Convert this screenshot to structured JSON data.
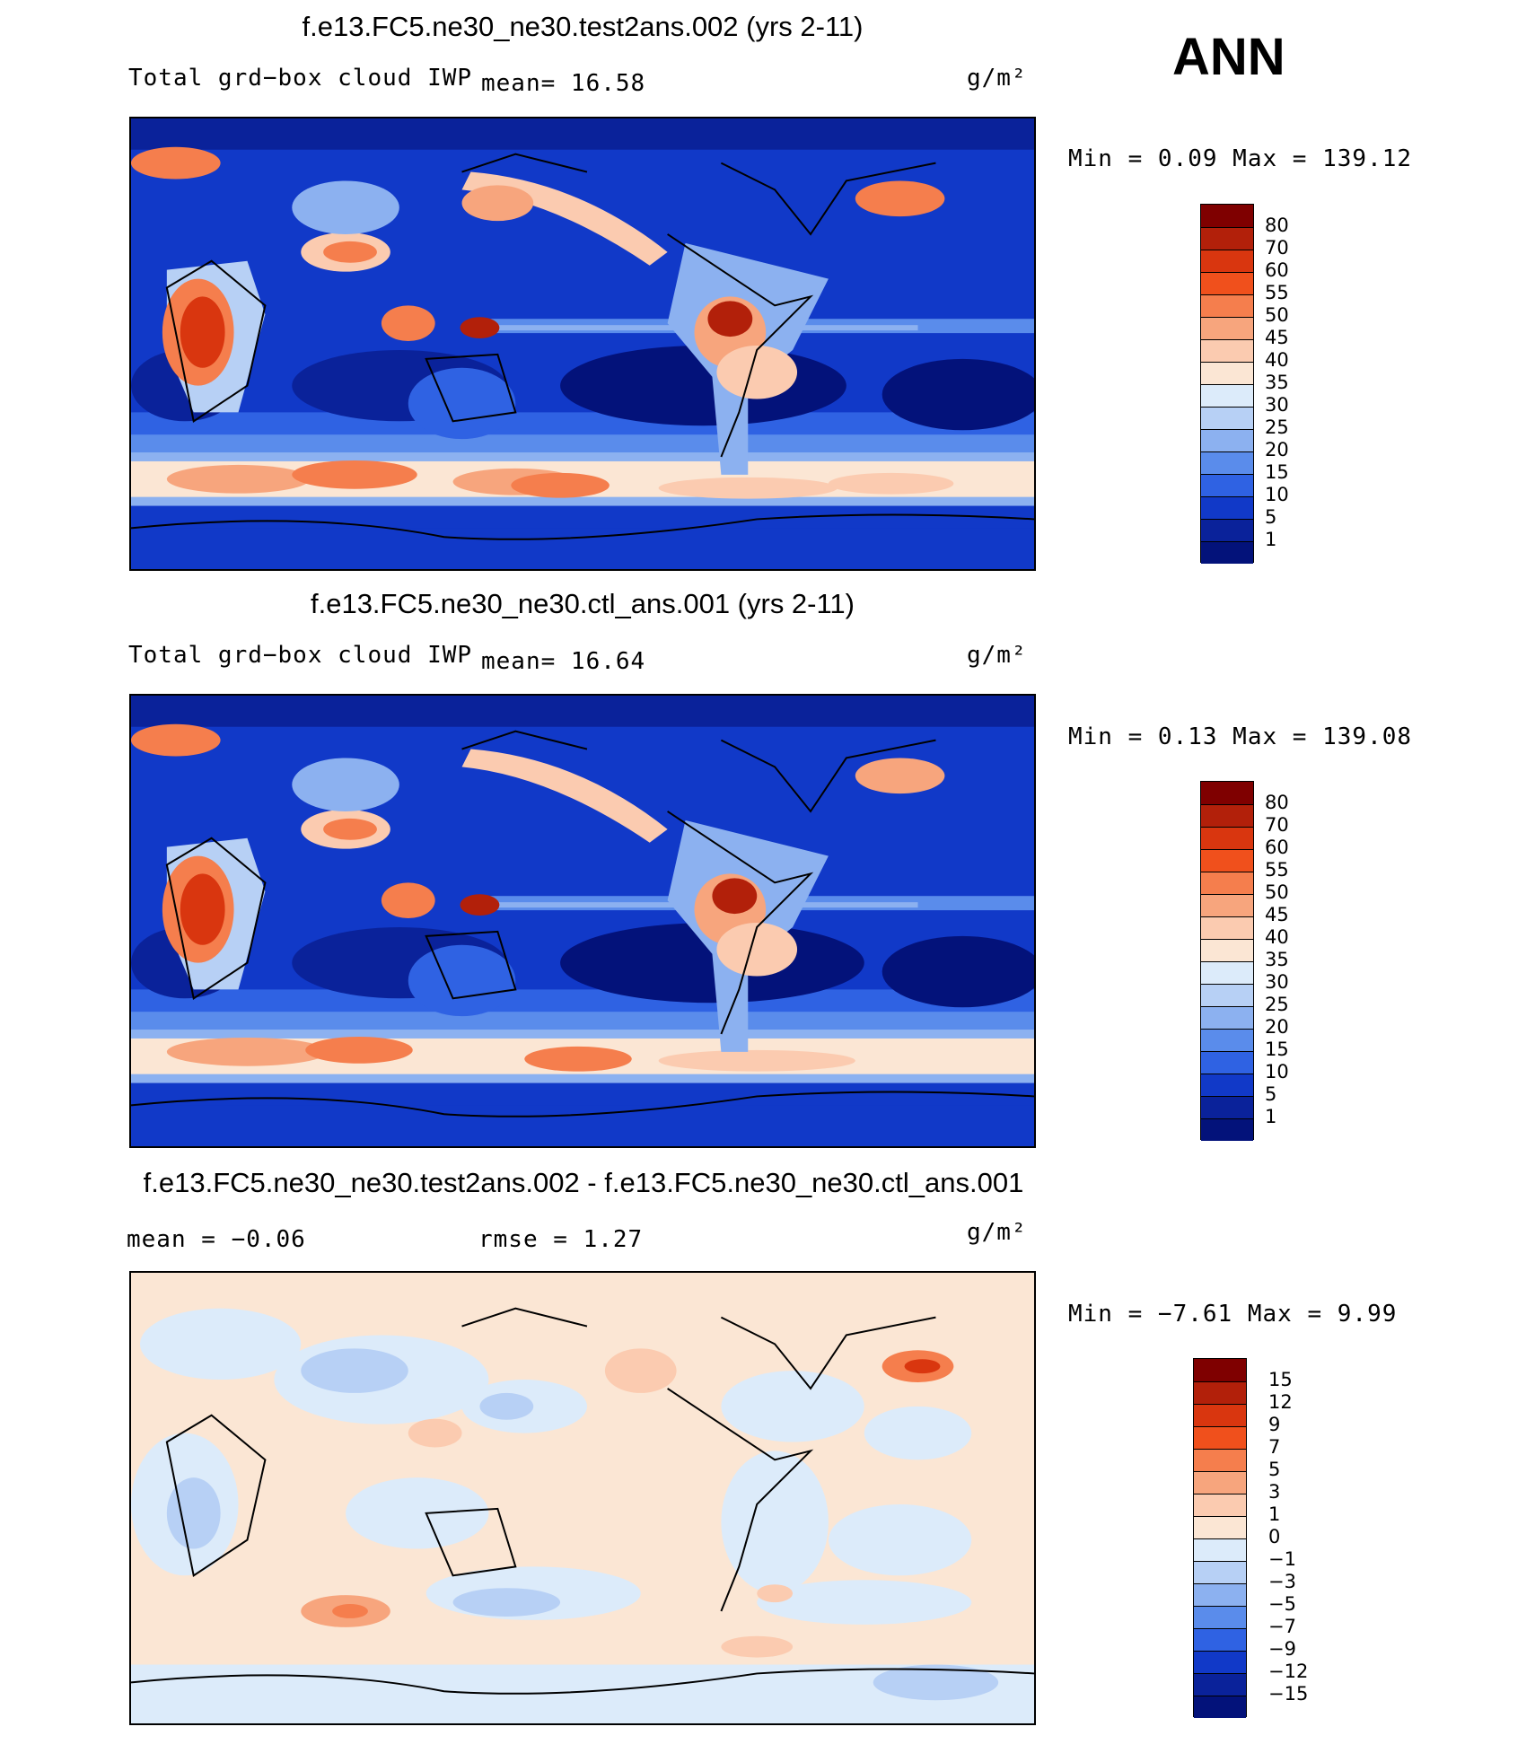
{
  "header": {
    "season": "ANN"
  },
  "panels": [
    {
      "title": "f.e13.FC5.ne30_ne30.test2ans.002 (yrs 2-11)",
      "variable": "Total grd−box cloud IWP",
      "stat_left": "mean=   16.58",
      "units": "g/m²",
      "minmax": "Min =    0.09  Max = 139.12"
    },
    {
      "title": "f.e13.FC5.ne30_ne30.ctl_ans.001 (yrs 2-11)",
      "variable": "Total grd−box cloud IWP",
      "stat_left": "mean=   16.64",
      "units": "g/m²",
      "minmax": "Min =    0.13  Max = 139.08"
    },
    {
      "title": "f.e13.FC5.ne30_ne30.test2ans.002 - f.e13.FC5.ne30_ne30.ctl_ans.001",
      "variable": "mean =   −0.06",
      "stat_left": "rmse =    1.27",
      "units": "g/m²",
      "minmax": "Min =  −7.61  Max =    9.99"
    }
  ],
  "colorbars": {
    "field": {
      "labels": [
        "80",
        "70",
        "60",
        "55",
        "50",
        "45",
        "40",
        "35",
        "30",
        "25",
        "20",
        "15",
        "10",
        "5",
        "1"
      ],
      "colors": [
        "#7f0000",
        "#b2200a",
        "#d9360f",
        "#f0501c",
        "#f57e4d",
        "#f7a57d",
        "#fbcbb0",
        "#fbe6d4",
        "#dcebfa",
        "#b7d0f5",
        "#8cb1f0",
        "#5a8ceb",
        "#2f62e3",
        "#1139c8",
        "#0a229a",
        "#03127a"
      ]
    },
    "diff": {
      "labels": [
        "15",
        "12",
        "9",
        "7",
        "5",
        "3",
        "1",
        "0",
        "−1",
        "−3",
        "−5",
        "−7",
        "−9",
        "−12",
        "−15"
      ],
      "colors": [
        "#7f0000",
        "#b2200a",
        "#d9360f",
        "#f0501c",
        "#f57e4d",
        "#f7a57d",
        "#fbcbb0",
        "#fbe6d4",
        "#dcebfa",
        "#b7d0f5",
        "#8cb1f0",
        "#5a8ceb",
        "#2f62e3",
        "#1139c8",
        "#0a229a",
        "#03127a"
      ]
    }
  },
  "chart_data": [
    {
      "type": "heatmap",
      "title": "f.e13.FC5.ne30_ne30.test2ans.002 (yrs 2-11)",
      "variable": "Total grd-box cloud IWP",
      "units": "g/m2",
      "mean": 16.58,
      "min": 0.09,
      "max": 139.12,
      "levels": [
        1,
        5,
        10,
        15,
        20,
        25,
        30,
        35,
        40,
        45,
        50,
        55,
        60,
        70,
        80
      ],
      "xlim": [
        0,
        360
      ],
      "ylim": [
        -90,
        90
      ],
      "projection": "cylindrical-equidistant, centered on Pacific"
    },
    {
      "type": "heatmap",
      "title": "f.e13.FC5.ne30_ne30.ctl_ans.001 (yrs 2-11)",
      "variable": "Total grd-box cloud IWP",
      "units": "g/m2",
      "mean": 16.64,
      "min": 0.13,
      "max": 139.08,
      "levels": [
        1,
        5,
        10,
        15,
        20,
        25,
        30,
        35,
        40,
        45,
        50,
        55,
        60,
        70,
        80
      ],
      "xlim": [
        0,
        360
      ],
      "ylim": [
        -90,
        90
      ]
    },
    {
      "type": "heatmap",
      "title": "f.e13.FC5.ne30_ne30.test2ans.002 - f.e13.FC5.ne30_ne30.ctl_ans.001",
      "units": "g/m2",
      "mean": -0.06,
      "rmse": 1.27,
      "min": -7.61,
      "max": 9.99,
      "levels": [
        -15,
        -12,
        -9,
        -7,
        -5,
        -3,
        -1,
        0,
        1,
        3,
        5,
        7,
        9,
        12,
        15
      ],
      "xlim": [
        0,
        360
      ],
      "ylim": [
        -90,
        90
      ]
    }
  ]
}
